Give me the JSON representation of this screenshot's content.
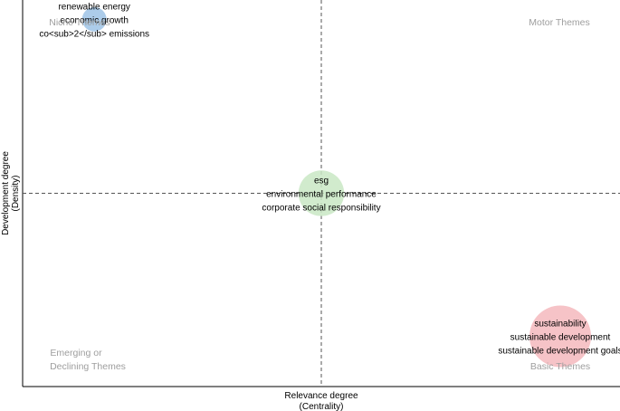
{
  "chart_data": {
    "type": "scatter",
    "title": "",
    "xlabel": [
      "Relevance degree",
      "(Centrality)"
    ],
    "ylabel": [
      "Development degree",
      "(Density)"
    ],
    "quadrants": {
      "top_left": "Niche Themes",
      "top_right": "Motor Themes",
      "bottom_left": [
        "Emerging or",
        "Declining Themes"
      ],
      "bottom_right": "Basic Themes"
    },
    "xlim": [
      0,
      1
    ],
    "ylim": [
      0,
      1
    ],
    "reference_lines": {
      "x": 0.5,
      "y": 0.5
    },
    "grid": false,
    "clusters": [
      {
        "x": 0.12,
        "y": 0.95,
        "size": 0.1,
        "color": "#9ec3e6",
        "labels": [
          "renewable energy",
          "economic growth",
          "co<sub>2</sub> emissions"
        ]
      },
      {
        "x": 0.5,
        "y": 0.5,
        "size": 0.5,
        "color": "#c9e8c4",
        "labels": [
          "esg",
          "environmental performance",
          "corporate social responsibility"
        ]
      },
      {
        "x": 0.9,
        "y": 0.13,
        "size": 1.0,
        "color": "#f4b9bd",
        "labels": [
          "sustainability",
          "sustainable development",
          "sustainable development goals"
        ]
      }
    ]
  }
}
